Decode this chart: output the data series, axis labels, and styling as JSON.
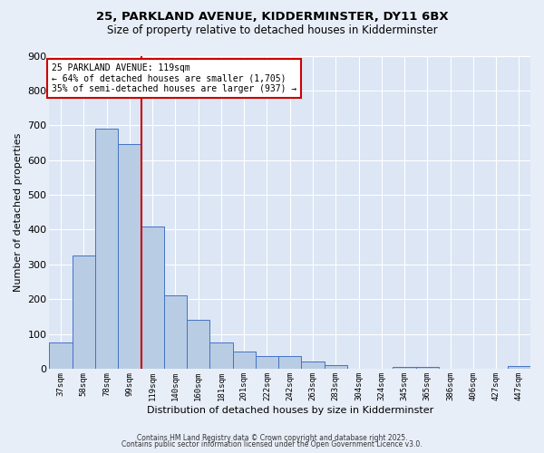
{
  "title_line1": "25, PARKLAND AVENUE, KIDDERMINSTER, DY11 6BX",
  "title_line2": "Size of property relative to detached houses in Kidderminster",
  "xlabel": "Distribution of detached houses by size in Kidderminster",
  "ylabel": "Number of detached properties",
  "categories": [
    "37sqm",
    "58sqm",
    "78sqm",
    "99sqm",
    "119sqm",
    "140sqm",
    "160sqm",
    "181sqm",
    "201sqm",
    "222sqm",
    "242sqm",
    "263sqm",
    "283sqm",
    "304sqm",
    "324sqm",
    "345sqm",
    "365sqm",
    "386sqm",
    "406sqm",
    "427sqm",
    "447sqm"
  ],
  "values": [
    75,
    325,
    690,
    645,
    410,
    210,
    140,
    75,
    50,
    35,
    35,
    20,
    10,
    0,
    0,
    5,
    5,
    0,
    0,
    0,
    8
  ],
  "bar_color": "#b8cce4",
  "bar_edge_color": "#4472c4",
  "red_line_index": 3,
  "annotation_text": "25 PARKLAND AVENUE: 119sqm\n← 64% of detached houses are smaller (1,705)\n35% of semi-detached houses are larger (937) →",
  "annotation_box_color": "#ffffff",
  "annotation_box_edge_color": "#cc0000",
  "ylim": [
    0,
    900
  ],
  "yticks": [
    0,
    100,
    200,
    300,
    400,
    500,
    600,
    700,
    800,
    900
  ],
  "background_color": "#dce6f5",
  "grid_color": "#ffffff",
  "footer_line1": "Contains HM Land Registry data © Crown copyright and database right 2025.",
  "footer_line2": "Contains public sector information licensed under the Open Government Licence v3.0."
}
